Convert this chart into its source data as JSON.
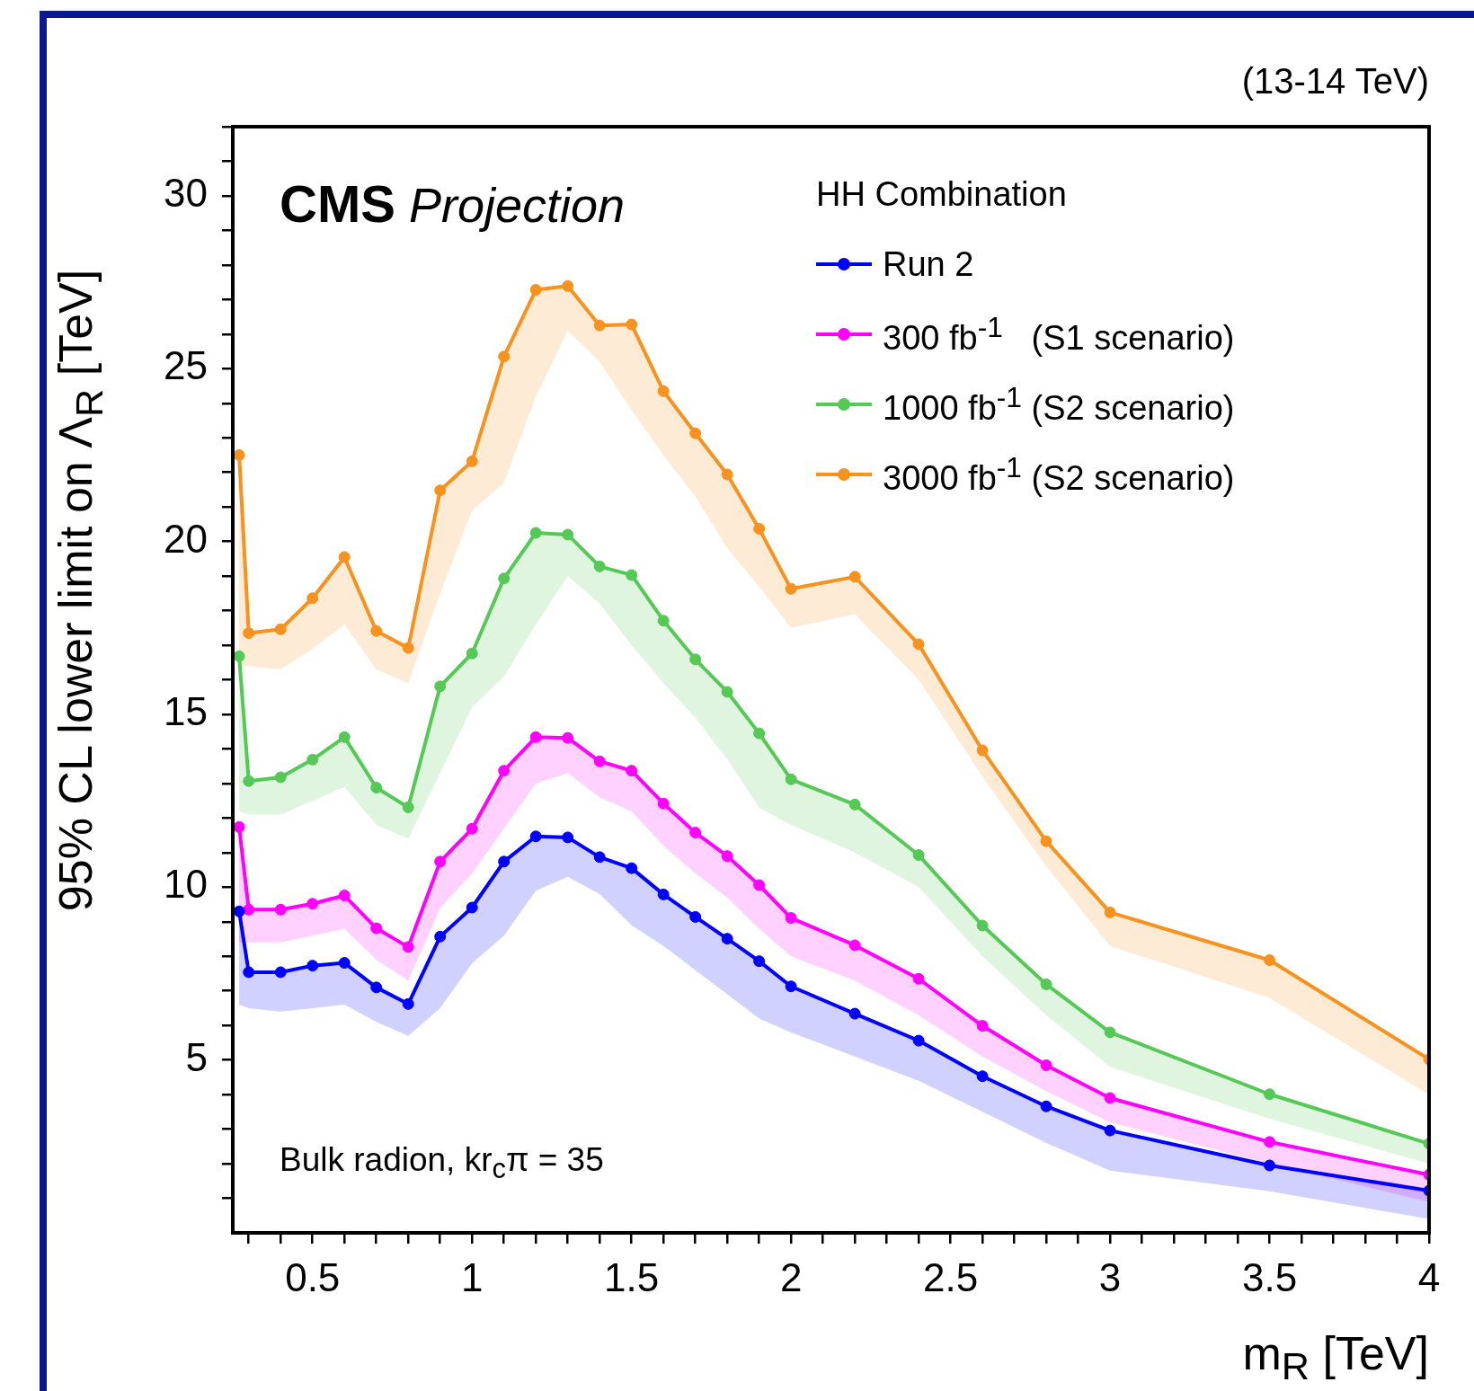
{
  "chart_data": {
    "type": "line",
    "xlabel": "m$_{R}$ [TeV]",
    "ylabel": "95% CL lower limit on Λ$_{R}$ [TeV]",
    "legend_title": "HH Combination",
    "annotations": [
      "(13-14 TeV)",
      "CMS Projection",
      "Bulk radion, kr$_{c}$π = 35"
    ],
    "x": [
      0.27,
      0.3,
      0.4,
      0.5,
      0.6,
      0.7,
      0.8,
      0.9,
      1.0,
      1.1,
      1.2,
      1.3,
      1.4,
      1.5,
      1.6,
      1.7,
      1.8,
      1.9,
      2.0,
      2.2,
      2.4,
      2.6,
      2.8,
      3.0,
      3.5,
      4.0
    ],
    "series": [
      {
        "name": "Run 2",
        "color": "#0000ff",
        "values": [
          9.3,
          7.54,
          7.54,
          7.73,
          7.81,
          7.1,
          6.62,
          8.57,
          9.41,
          10.74,
          11.47,
          11.44,
          10.87,
          10.55,
          9.79,
          9.14,
          8.51,
          7.86,
          7.13,
          6.34,
          5.56,
          4.53,
          3.66,
          2.96,
          1.95,
          1.22
        ],
        "lower": [
          6.6,
          6.5,
          6.4,
          6.5,
          6.6,
          6.1,
          5.7,
          6.5,
          7.8,
          8.6,
          9.9,
          10.3,
          9.8,
          8.9,
          8.3,
          7.6,
          6.9,
          6.2,
          5.8,
          5.1,
          4.4,
          3.5,
          2.6,
          1.8,
          1.2,
          0.4
        ],
        "upper": [
          9.3,
          7.54,
          7.54,
          7.73,
          7.81,
          7.1,
          6.62,
          8.57,
          9.41,
          10.74,
          11.47,
          11.44,
          10.87,
          10.55,
          9.79,
          9.14,
          8.51,
          7.86,
          7.13,
          6.34,
          5.56,
          4.53,
          3.66,
          2.96,
          1.95,
          1.22
        ]
      },
      {
        "name": "300 fb$^{-1}$   (S1 scenario)",
        "color": "#ff00ff",
        "values": [
          11.74,
          9.35,
          9.35,
          9.52,
          9.76,
          8.81,
          8.27,
          10.74,
          11.69,
          13.37,
          14.34,
          14.32,
          13.64,
          13.37,
          12.42,
          11.58,
          10.9,
          10.06,
          9.11,
          8.32,
          7.35,
          5.99,
          4.85,
          3.9,
          2.63,
          1.68
        ],
        "lower": [
          8.4,
          8.4,
          8.4,
          8.6,
          8.8,
          7.9,
          7.3,
          9.4,
          10.4,
          11.7,
          13.0,
          13.3,
          12.6,
          12.2,
          11.2,
          10.4,
          9.7,
          8.8,
          8.0,
          7.3,
          6.3,
          5.1,
          4.1,
          3.2,
          2.0,
          0.9
        ],
        "upper": [
          11.74,
          9.35,
          9.35,
          9.52,
          9.76,
          8.81,
          8.27,
          10.74,
          11.69,
          13.37,
          14.34,
          14.32,
          13.64,
          13.37,
          12.42,
          11.58,
          10.9,
          10.06,
          9.11,
          8.32,
          7.35,
          5.99,
          4.85,
          3.9,
          2.63,
          1.68
        ]
      },
      {
        "name": "1000 fb$^{-1}$ (S2 scenario)",
        "color": "#55c955",
        "values": [
          16.68,
          13.07,
          13.18,
          13.69,
          14.34,
          12.88,
          12.31,
          15.81,
          16.76,
          18.93,
          20.25,
          20.2,
          19.28,
          19.03,
          17.71,
          16.59,
          15.65,
          14.45,
          13.12,
          12.39,
          10.93,
          8.89,
          7.19,
          5.8,
          4.01,
          2.58
        ],
        "lower": [
          12.2,
          12.1,
          12.1,
          12.5,
          12.9,
          11.8,
          11.4,
          13.3,
          15.2,
          16.1,
          17.6,
          19.0,
          18.2,
          17.0,
          15.9,
          14.9,
          13.7,
          12.3,
          11.8,
          11.0,
          10.0,
          8.0,
          6.3,
          4.8,
          3.3,
          2.0
        ],
        "upper": [
          16.68,
          13.07,
          13.18,
          13.69,
          14.34,
          12.88,
          12.31,
          15.81,
          16.76,
          18.93,
          20.25,
          20.2,
          19.28,
          19.03,
          17.71,
          16.59,
          15.65,
          14.45,
          13.12,
          12.39,
          10.93,
          8.89,
          7.19,
          5.8,
          4.01,
          2.58
        ]
      },
      {
        "name": "3000 fb$^{-1}$ (S2 scenario)",
        "color": "#f7921e",
        "values": [
          22.5,
          17.35,
          17.46,
          18.36,
          19.55,
          17.41,
          16.92,
          21.48,
          22.32,
          25.35,
          27.28,
          27.39,
          26.25,
          26.28,
          24.35,
          23.13,
          21.94,
          20.37,
          18.63,
          18.98,
          17.03,
          13.96,
          11.33,
          9.27,
          7.89,
          5.02
        ],
        "lower": [
          16.4,
          16.4,
          16.3,
          16.9,
          17.6,
          16.3,
          15.9,
          18.5,
          20.9,
          21.7,
          24.2,
          26.1,
          25.2,
          23.8,
          22.5,
          21.3,
          19.8,
          18.7,
          17.5,
          17.9,
          16.0,
          13.2,
          10.6,
          8.3,
          6.8,
          4.0
        ],
        "upper": [
          22.5,
          17.35,
          17.46,
          18.36,
          19.55,
          17.41,
          16.92,
          21.48,
          22.32,
          25.35,
          27.28,
          27.39,
          26.25,
          26.28,
          24.35,
          23.13,
          21.94,
          20.37,
          18.63,
          18.98,
          17.03,
          13.96,
          11.33,
          9.27,
          7.89,
          5.02
        ]
      }
    ],
    "xlim": [
      0.25,
      4
    ],
    "ylim": [
      0,
      32
    ],
    "xticks": [
      {
        "value": 0.3,
        "label": null
      },
      {
        "value": 0.4,
        "label": null
      },
      0.5,
      {
        "value": 0.6,
        "label": null
      },
      {
        "value": 0.7,
        "label": null
      },
      {
        "value": 0.8,
        "label": null
      },
      {
        "value": 0.9,
        "label": null
      },
      1,
      {
        "value": 1.1,
        "label": null
      },
      {
        "value": 1.2,
        "label": null
      },
      {
        "value": 1.3,
        "label": null
      },
      {
        "value": 1.4,
        "label": null
      },
      1.5,
      {
        "value": 1.6,
        "label": null
      },
      {
        "value": 1.7,
        "label": null
      },
      {
        "value": 1.8,
        "label": null
      },
      {
        "value": 1.9,
        "label": null
      },
      2,
      {
        "value": 2.1,
        "label": null
      },
      {
        "value": 2.2,
        "label": null
      },
      {
        "value": 2.3,
        "label": null
      },
      {
        "value": 2.4,
        "label": null
      },
      2.5,
      {
        "value": 2.6,
        "label": null
      },
      {
        "value": 2.7,
        "label": null
      },
      {
        "value": 2.8,
        "label": null
      },
      {
        "value": 2.9,
        "label": null
      },
      3,
      {
        "value": 3.1,
        "label": null
      },
      {
        "value": 3.2,
        "label": null
      },
      {
        "value": 3.3,
        "label": null
      },
      {
        "value": 3.4,
        "label": null
      },
      3.5,
      {
        "value": 3.6,
        "label": null
      },
      {
        "value": 3.7,
        "label": null
      },
      {
        "value": 3.8,
        "label": null
      },
      {
        "value": 3.9,
        "label": null
      },
      4
    ],
    "yticks": [
      {
        "value": 1,
        "label": null
      },
      {
        "value": 2,
        "label": null
      },
      {
        "value": 3,
        "label": null
      },
      {
        "value": 4,
        "label": null
      },
      5,
      {
        "value": 6,
        "label": null
      },
      {
        "value": 7,
        "label": null
      },
      {
        "value": 8,
        "label": null
      },
      {
        "value": 9,
        "label": null
      },
      10,
      {
        "value": 11,
        "label": null
      },
      {
        "value": 12,
        "label": null
      },
      {
        "value": 13,
        "label": null
      },
      {
        "value": 14,
        "label": null
      },
      15,
      {
        "value": 16,
        "label": null
      },
      {
        "value": 17,
        "label": null
      },
      {
        "value": 18,
        "label": null
      },
      {
        "value": 19,
        "label": null
      },
      20,
      {
        "value": 21,
        "label": null
      },
      {
        "value": 22,
        "label": null
      },
      {
        "value": 23,
        "label": null
      },
      {
        "value": 24,
        "label": null
      },
      25,
      {
        "value": 26,
        "label": null
      },
      {
        "value": 27,
        "label": null
      },
      {
        "value": 28,
        "label": null
      },
      {
        "value": 29,
        "label": null
      },
      30,
      {
        "value": 31,
        "label": null
      },
      {
        "value": 32,
        "label": null
      }
    ],
    "grid": false,
    "legend": "top right",
    "marker": "circle",
    "line_style": "solid"
  }
}
